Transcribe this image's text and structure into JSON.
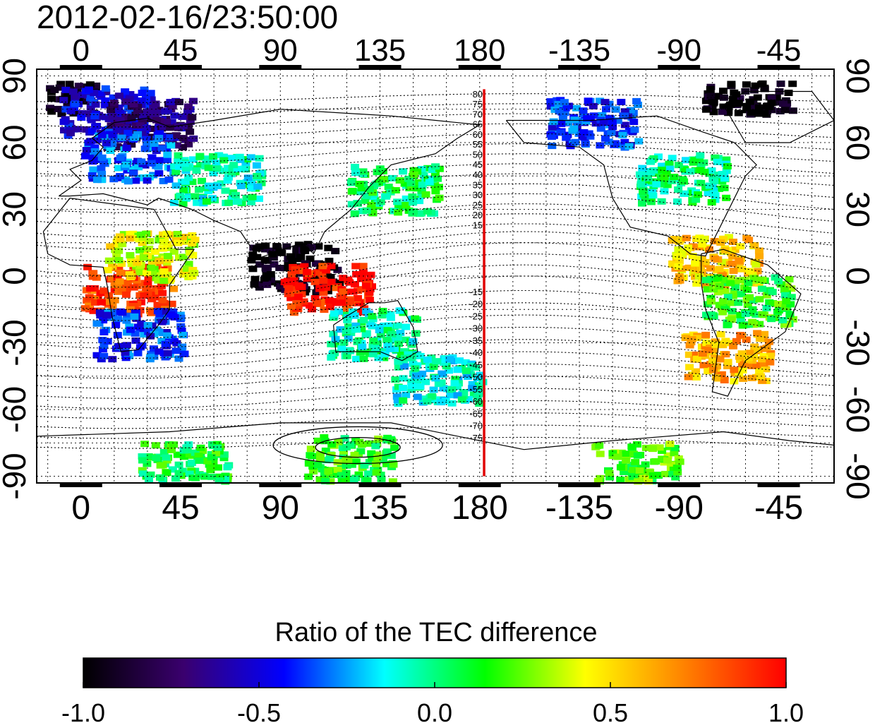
{
  "title": "2012-02-16/23:50:00",
  "map": {
    "lon_ticks": [
      "0",
      "45",
      "90",
      "135",
      "180",
      "-135",
      "-90",
      "-45"
    ],
    "lon_tick_values": [
      0,
      45,
      90,
      135,
      180,
      225,
      270,
      315
    ],
    "lat_ticks": [
      "90",
      "60",
      "30",
      "0",
      "-30",
      "-60",
      "-90"
    ],
    "lat_tick_values": [
      90,
      60,
      30,
      0,
      -30,
      -60,
      -90
    ],
    "lon_range": [
      -20,
      340
    ],
    "lat_range": [
      -93,
      93
    ],
    "grid": true,
    "meridian_line": {
      "lon": 182,
      "color": "#e00000",
      "labels": [
        "80",
        "75",
        "70",
        "65",
        "60",
        "55",
        "50",
        "45",
        "40",
        "35",
        "30",
        "25",
        "20",
        "15",
        "-15",
        "-20",
        "-25",
        "-30",
        "-35",
        "-40",
        "-45",
        "-50",
        "-55",
        "-60",
        "-65",
        "-70",
        "-75"
      ]
    }
  },
  "colorbar": {
    "title": "Ratio of the TEC difference",
    "tick_labels": [
      "-1.0",
      "-0.5",
      "0.0",
      "0.5",
      "1.0"
    ],
    "range": [
      -1.0,
      1.0
    ],
    "colors": [
      "#000000",
      "#3a006e",
      "#0000ff",
      "#00ffff",
      "#00ff00",
      "#ffff00",
      "#ff8000",
      "#ff0000"
    ]
  },
  "tec_regions": [
    {
      "lon": -15,
      "lat": 85,
      "value": -1.0
    },
    {
      "lon": 10,
      "lat": 75,
      "value": -0.5
    },
    {
      "lon": 30,
      "lat": 70,
      "value": -0.7
    },
    {
      "lon": 20,
      "lat": 55,
      "value": -0.35
    },
    {
      "lon": 60,
      "lat": 45,
      "value": -0.05
    },
    {
      "lon": 20,
      "lat": -5,
      "value": 0.85
    },
    {
      "lon": 25,
      "lat": -25,
      "value": -0.4
    },
    {
      "lon": 30,
      "lat": 10,
      "value": 0.4
    },
    {
      "lon": 95,
      "lat": 5,
      "value": -1.0
    },
    {
      "lon": 110,
      "lat": -5,
      "value": 0.95
    },
    {
      "lon": 130,
      "lat": -25,
      "value": -0.05
    },
    {
      "lon": 140,
      "lat": 40,
      "value": 0.05
    },
    {
      "lon": 160,
      "lat": -45,
      "value": -0.1
    },
    {
      "lon": 230,
      "lat": 70,
      "value": -0.4
    },
    {
      "lon": 270,
      "lat": 45,
      "value": 0.0
    },
    {
      "lon": 285,
      "lat": 8,
      "value": 0.55
    },
    {
      "lon": 300,
      "lat": -10,
      "value": 0.15
    },
    {
      "lon": 290,
      "lat": -35,
      "value": 0.6
    },
    {
      "lon": 300,
      "lat": 85,
      "value": -1.0
    },
    {
      "lon": 120,
      "lat": -82,
      "value": 0.15
    },
    {
      "lon": 250,
      "lat": -85,
      "value": 0.2
    },
    {
      "lon": 45,
      "lat": -85,
      "value": 0.1
    }
  ]
}
